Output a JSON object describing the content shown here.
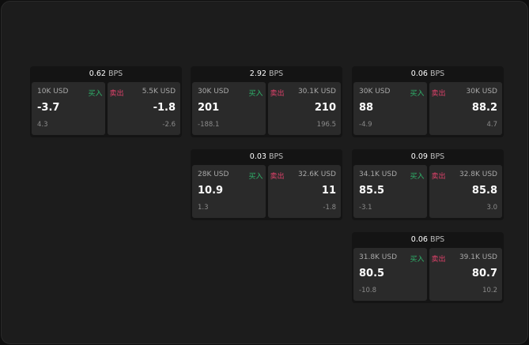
{
  "cards": [
    {
      "bps": "0.62",
      "unit": "BPS",
      "bid": {
        "size": "10K USD",
        "label": "买入",
        "price": "-3.7",
        "change": "4.3"
      },
      "ask": {
        "size": "5.5K USD",
        "label": "卖出",
        "price": "-1.8",
        "change": "-2.6"
      }
    },
    {
      "bps": "2.92",
      "unit": "BPS",
      "bid": {
        "size": "30K USD",
        "label": "买入",
        "price": "201",
        "change": "-188.1"
      },
      "ask": {
        "size": "30.1K USD",
        "label": "卖出",
        "price": "210",
        "change": "196.5"
      }
    },
    {
      "bps": "0.06",
      "unit": "BPS",
      "bid": {
        "size": "30K USD",
        "label": "买入",
        "price": "88",
        "change": "-4.9"
      },
      "ask": {
        "size": "30K USD",
        "label": "卖出",
        "price": "88.2",
        "change": "4.7"
      }
    },
    {
      "bps": "0.03",
      "unit": "BPS",
      "bid": {
        "size": "28K USD",
        "label": "买入",
        "price": "10.9",
        "change": "1.3"
      },
      "ask": {
        "size": "32.6K USD",
        "label": "卖出",
        "price": "11",
        "change": "-1.8"
      }
    },
    {
      "bps": "0.09",
      "unit": "BPS",
      "bid": {
        "size": "34.1K USD",
        "label": "买入",
        "price": "85.5",
        "change": "-3.1"
      },
      "ask": {
        "size": "32.8K USD",
        "label": "卖出",
        "price": "85.8",
        "change": "3.0"
      }
    },
    {
      "bps": "0.06",
      "unit": "BPS",
      "bid": {
        "size": "31.8K USD",
        "label": "买入",
        "price": "80.5",
        "change": "-10.8"
      },
      "ask": {
        "size": "39.1K USD",
        "label": "卖出",
        "price": "80.7",
        "change": "10.2"
      }
    }
  ],
  "colors": {
    "buy": "#2fb36b",
    "sell": "#e0426b"
  }
}
